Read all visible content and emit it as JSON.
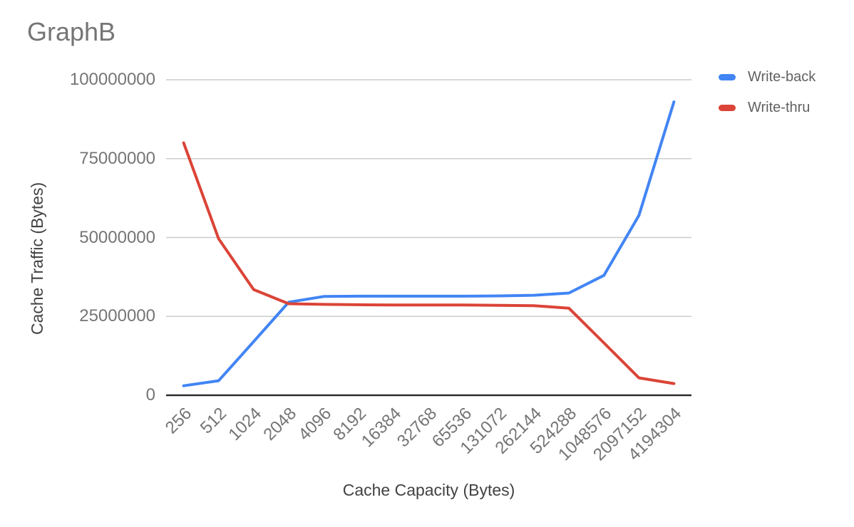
{
  "title": "GraphB",
  "colors": {
    "title_text": "#757575",
    "tick_text": "#757575",
    "axis_title_text": "#424242",
    "legend_text": "#616161",
    "gridline": "#cccccc",
    "baseline": "#2b2b2b",
    "background": "#ffffff",
    "series_blue": "#4285f4",
    "series_red": "#db4437"
  },
  "legend": {
    "position": "right",
    "items": [
      {
        "label": "Write-back",
        "color": "#4285f4"
      },
      {
        "label": "Write-thru",
        "color": "#db4437"
      }
    ]
  },
  "chart_data": {
    "type": "line",
    "title": "GraphB",
    "xlabel": "Cache Capacity (Bytes)",
    "ylabel": "Cache Traffic (Bytes)",
    "categories": [
      "256",
      "512",
      "1024",
      "2048",
      "4096",
      "8192",
      "16384",
      "32768",
      "65536",
      "131072",
      "262144",
      "524288",
      "1048576",
      "2097152",
      "4194304"
    ],
    "series": [
      {
        "name": "Write-back",
        "color": "#4285f4",
        "values": [
          3000000,
          4600000,
          17000000,
          29500000,
          31300000,
          31400000,
          31400000,
          31400000,
          31400000,
          31500000,
          31700000,
          32400000,
          38000000,
          57000000,
          93000000
        ]
      },
      {
        "name": "Write-thru",
        "color": "#db4437",
        "values": [
          80000000,
          49600000,
          33500000,
          29000000,
          28800000,
          28700000,
          28600000,
          28600000,
          28600000,
          28500000,
          28400000,
          27600000,
          16600000,
          5500000,
          3700000
        ]
      }
    ],
    "y_ticks": [
      0,
      25000000,
      50000000,
      75000000,
      100000000
    ],
    "ylim": [
      0,
      100000000
    ],
    "grid": true,
    "legend_position": "right"
  }
}
